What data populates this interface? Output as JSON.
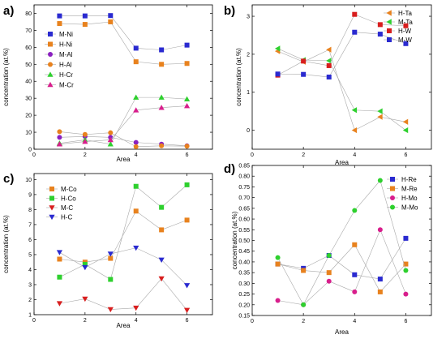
{
  "chart_data": [
    {
      "panel_label": "a)",
      "type": "line",
      "xlabel": "Area",
      "ylabel": "concentration (at.%)",
      "x": [
        1,
        2,
        3,
        4,
        5,
        6
      ],
      "xlim": [
        0,
        7
      ],
      "xticks": [
        0,
        2,
        4,
        6
      ],
      "ylim": [
        0,
        85
      ],
      "yticks": [
        0,
        10,
        20,
        30,
        40,
        50,
        60,
        70,
        80
      ],
      "legend_position": "left",
      "series": [
        {
          "name": "M-Ni",
          "values": [
            78.5,
            78.5,
            78.7,
            59.5,
            58.5,
            61.3
          ],
          "color": "#2a2ad0",
          "marker": "square"
        },
        {
          "name": "H-Ni",
          "values": [
            74.0,
            73.5,
            75.0,
            51.5,
            50.0,
            50.5
          ],
          "color": "#e8821e",
          "marker": "square"
        },
        {
          "name": "M-Al",
          "values": [
            7.0,
            7.5,
            7.0,
            4.0,
            3.0,
            2.0
          ],
          "color": "#8a20c0",
          "marker": "circle"
        },
        {
          "name": "H-Al",
          "values": [
            10.3,
            8.7,
            9.7,
            1.5,
            2.0,
            1.8
          ],
          "color": "#e8821e",
          "marker": "circle"
        },
        {
          "name": "H-Cr",
          "values": [
            3.5,
            5.5,
            3.0,
            30.5,
            30.5,
            29.5
          ],
          "color": "#2ed02e",
          "marker": "triangle-up"
        },
        {
          "name": "M-Cr",
          "values": [
            3.0,
            4.5,
            5.5,
            23.0,
            24.5,
            25.5
          ],
          "color": "#d81e8c",
          "marker": "triangle-up"
        }
      ]
    },
    {
      "panel_label": "b)",
      "type": "line",
      "xlabel": "Area",
      "ylabel": "concentration (at.%)",
      "x": [
        1,
        2,
        3,
        4,
        5,
        6
      ],
      "xlim": [
        0,
        7
      ],
      "xticks": [
        0,
        2,
        4,
        6
      ],
      "ylim": [
        -0.5,
        3.3
      ],
      "yticks": [
        0,
        1,
        2,
        3
      ],
      "legend_position": "top-right",
      "series": [
        {
          "name": "H-Ta",
          "values": [
            2.08,
            1.8,
            2.12,
            0.0,
            0.35,
            0.22
          ],
          "color": "#e8821e",
          "marker": "triangle-left"
        },
        {
          "name": "M-Ta",
          "values": [
            2.15,
            1.85,
            1.83,
            0.53,
            0.5,
            0.0
          ],
          "color": "#2ed02e",
          "marker": "triangle-left"
        },
        {
          "name": "H-W",
          "values": [
            1.45,
            1.82,
            1.7,
            3.05,
            2.78,
            2.75
          ],
          "color": "#d81e1e",
          "marker": "square"
        },
        {
          "name": "M-W",
          "values": [
            1.48,
            1.47,
            1.4,
            2.58,
            2.53,
            2.28
          ],
          "color": "#2a2ad0",
          "marker": "square"
        }
      ]
    },
    {
      "panel_label": "c)",
      "type": "line",
      "xlabel": "Area",
      "ylabel": "concentration (at.%)",
      "x": [
        1,
        2,
        3,
        4,
        5,
        6
      ],
      "xlim": [
        0,
        7
      ],
      "xticks": [
        0,
        2,
        4,
        6
      ],
      "ylim": [
        1,
        10.4
      ],
      "yticks": [
        1,
        2,
        3,
        4,
        5,
        6,
        7,
        8,
        9,
        10
      ],
      "legend_position": "top-left",
      "series": [
        {
          "name": "M-Co",
          "values": [
            4.7,
            4.5,
            4.75,
            7.9,
            6.65,
            7.3
          ],
          "color": "#e8821e",
          "marker": "square"
        },
        {
          "name": "H-Co",
          "values": [
            3.5,
            4.35,
            3.35,
            9.55,
            8.15,
            9.65
          ],
          "color": "#2ed02e",
          "marker": "square"
        },
        {
          "name": "M-C",
          "values": [
            1.75,
            2.05,
            1.35,
            1.45,
            3.4,
            1.3
          ],
          "color": "#d81e1e",
          "marker": "triangle-down"
        },
        {
          "name": "H-C",
          "values": [
            5.15,
            4.15,
            5.05,
            5.45,
            4.65,
            2.95
          ],
          "color": "#2a2ad0",
          "marker": "triangle-down"
        }
      ]
    },
    {
      "panel_label": "d)",
      "type": "line",
      "xlabel": "Area",
      "ylabel": "concentration (at.%)",
      "x": [
        1,
        2,
        3,
        4,
        5,
        6
      ],
      "xlim": [
        0,
        7
      ],
      "xticks": [
        0,
        2,
        4,
        6
      ],
      "ylim": [
        0.15,
        0.85
      ],
      "yticks": [
        0.15,
        0.2,
        0.25,
        0.3,
        0.35,
        0.4,
        0.45,
        0.5,
        0.55,
        0.6,
        0.65,
        0.7,
        0.75,
        0.8,
        0.85
      ],
      "legend_position": "top-right",
      "series": [
        {
          "name": "H-Re",
          "values": [
            0.39,
            0.37,
            0.43,
            0.34,
            0.32,
            0.51
          ],
          "color": "#2a2ad0",
          "marker": "square"
        },
        {
          "name": "M-Re",
          "values": [
            0.39,
            0.36,
            0.35,
            0.48,
            0.26,
            0.39
          ],
          "color": "#e8821e",
          "marker": "square"
        },
        {
          "name": "H-Mo",
          "values": [
            0.22,
            0.2,
            0.31,
            0.26,
            0.55,
            0.25
          ],
          "color": "#d81e8c",
          "marker": "circle"
        },
        {
          "name": "M-Mo",
          "values": [
            0.42,
            0.2,
            0.43,
            0.64,
            0.78,
            0.36
          ],
          "color": "#2ed02e",
          "marker": "circle"
        }
      ]
    }
  ]
}
